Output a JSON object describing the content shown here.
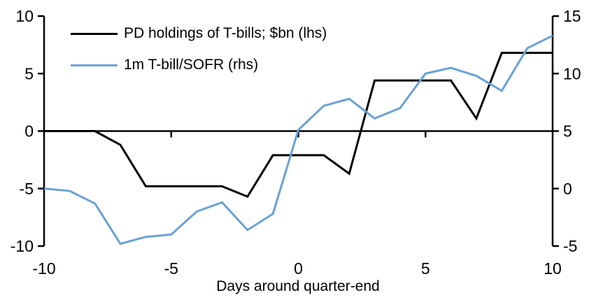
{
  "chart_data": {
    "type": "line",
    "xlabel": "Days around quarter-end",
    "x": [
      -10,
      -9,
      -8,
      -7,
      -6,
      -5,
      -4,
      -3,
      -2,
      -1,
      0,
      1,
      2,
      3,
      4,
      5,
      6,
      7,
      8,
      9,
      10
    ],
    "x_ticks": [
      -10,
      -5,
      0,
      5,
      10
    ],
    "left_axis": {
      "min": -10,
      "max": 10,
      "ticks": [
        10,
        5,
        0,
        -5,
        -10
      ]
    },
    "right_axis": {
      "min": -5,
      "max": 15,
      "ticks": [
        15,
        10,
        5,
        0,
        -5
      ]
    },
    "grid": "off",
    "legend_position": "top-left",
    "series": [
      {
        "name": "PD holdings of T-bills; $bn (lhs)",
        "axis": "left",
        "color": "#000000",
        "values": [
          0,
          0,
          0,
          -1.2,
          -4.8,
          -4.8,
          -4.8,
          -4.8,
          -5.7,
          -2.1,
          -2.1,
          -2.1,
          -3.7,
          4.4,
          4.4,
          4.4,
          4.4,
          1.1,
          6.8,
          6.8,
          6.8
        ]
      },
      {
        "name": "1m T-bill/SOFR (rhs)",
        "axis": "right",
        "color": "#69a1d8",
        "values": [
          0.0,
          -0.2,
          -1.3,
          -4.8,
          -4.2,
          -4.0,
          -2.0,
          -1.2,
          -3.6,
          -2.2,
          5.1,
          7.2,
          7.8,
          6.1,
          7.0,
          10.0,
          10.5,
          9.8,
          8.5,
          12.2,
          13.3
        ]
      }
    ],
    "colors": {
      "axis": "#000000",
      "background": "#ffffff"
    }
  }
}
